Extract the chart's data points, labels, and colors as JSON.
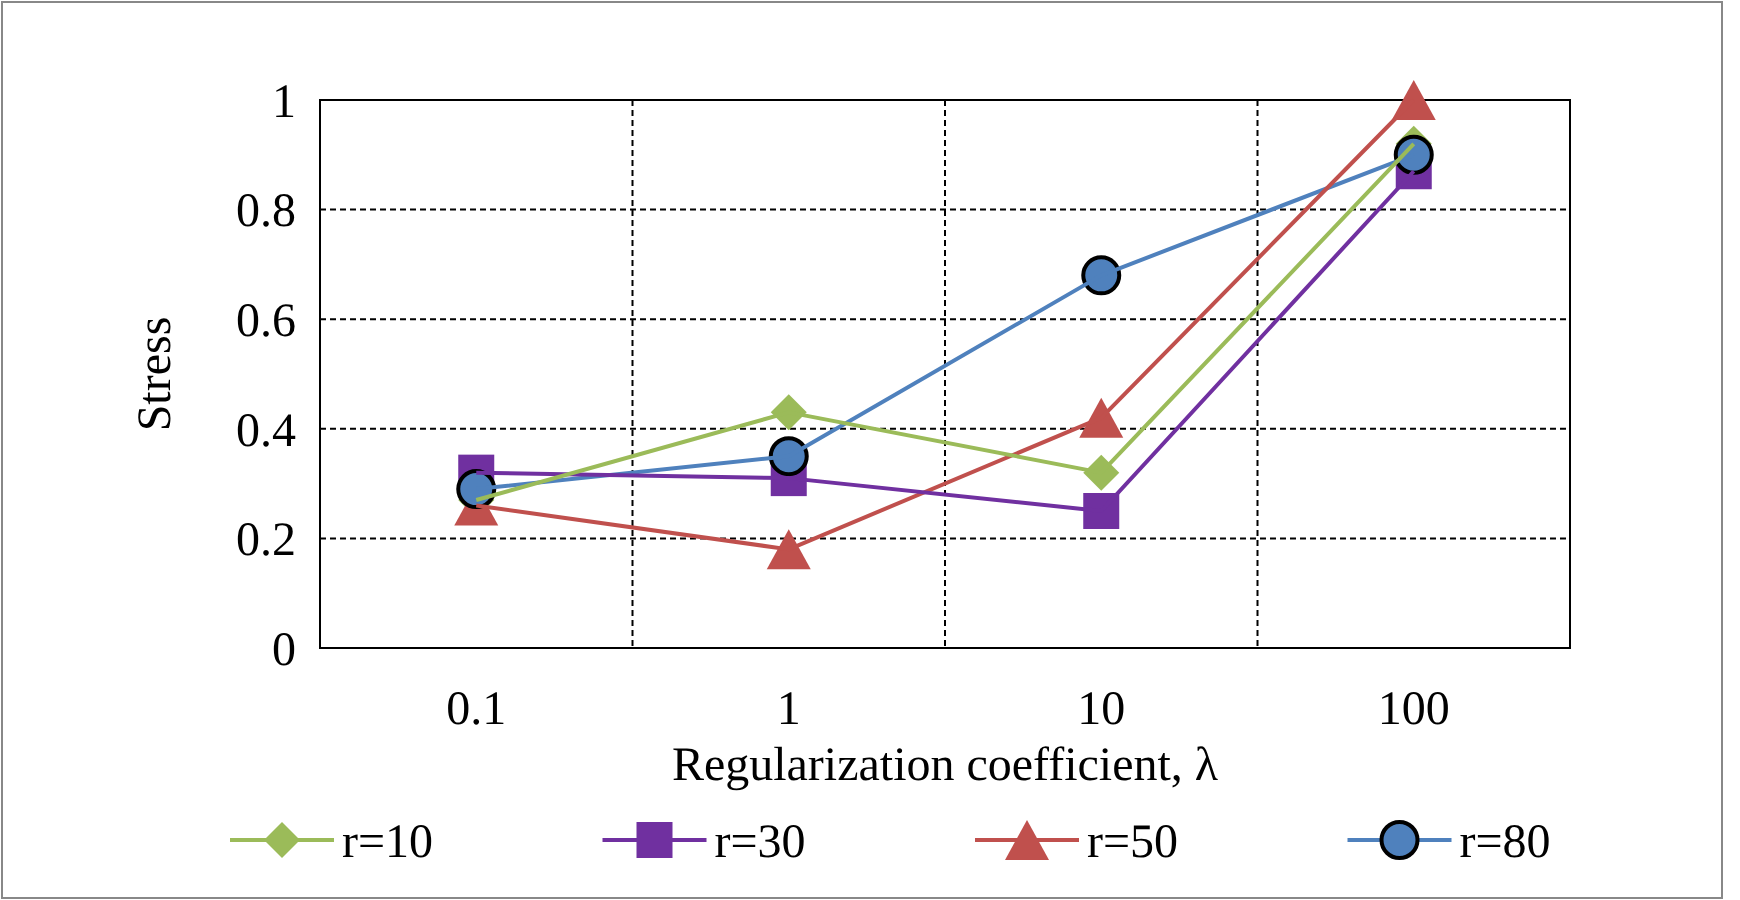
{
  "chart_data": {
    "type": "line",
    "xlabel": "Regularization coefficient, λ",
    "ylabel": "Stress",
    "categories": [
      "0.1",
      "1",
      "10",
      "100"
    ],
    "series": [
      {
        "name": "r=10",
        "color": "#9bbb59",
        "marker": "diamond",
        "values": [
          0.27,
          0.43,
          0.32,
          0.92
        ]
      },
      {
        "name": "r=30",
        "color": "#7030a0",
        "marker": "square",
        "values": [
          0.32,
          0.31,
          0.25,
          0.87
        ]
      },
      {
        "name": "r=50",
        "color": "#c0504d",
        "marker": "triangle",
        "values": [
          0.26,
          0.18,
          0.42,
          1.0
        ]
      },
      {
        "name": "r=80",
        "color": "#4f81bd",
        "marker": "circle",
        "values": [
          0.29,
          0.35,
          0.68,
          0.9
        ]
      }
    ],
    "ylim": [
      0,
      1
    ],
    "yticks": [
      0,
      0.2,
      0.4,
      0.6,
      0.8,
      1
    ],
    "grid": true,
    "legend": "bottom"
  }
}
